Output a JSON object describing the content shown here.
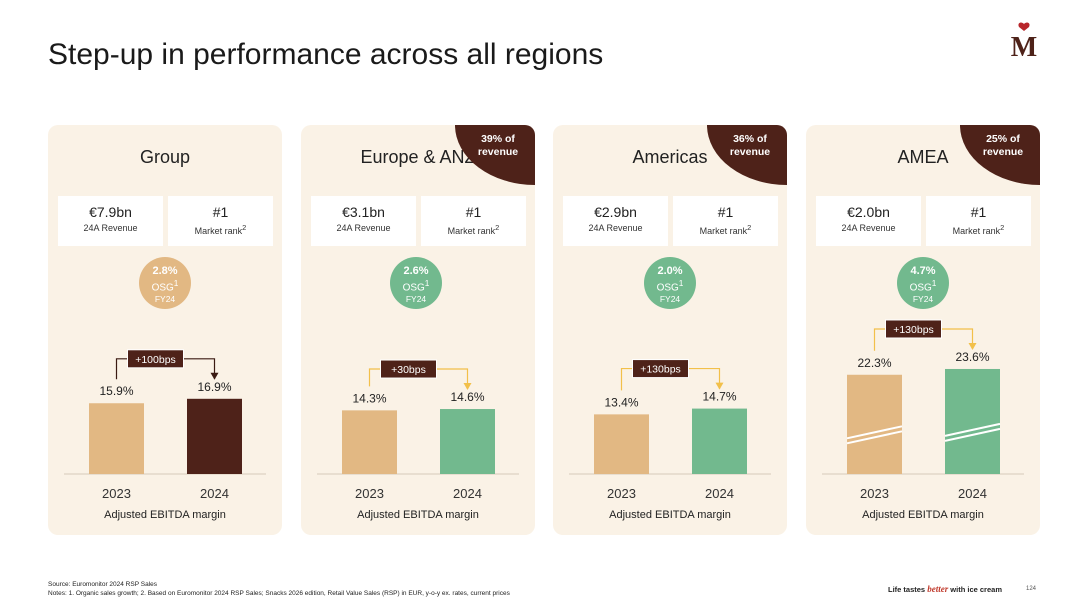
{
  "title": "Step-up in performance across all regions",
  "logo": {
    "letter": "M"
  },
  "colors": {
    "tan": "#e2b883",
    "brown": "#4e2219",
    "green": "#72b98e",
    "panel_bg": "#faf2e6",
    "corner": "#4e2219"
  },
  "labels": {
    "revenue_label": "24A Revenue",
    "rank_label": "Market rank",
    "rank_sup": "2",
    "osg_label": "OSG",
    "osg_sup": "1",
    "osg_year": "FY24",
    "ebitda_label": "Adjusted EBITDA margin"
  },
  "chart_data": [
    {
      "type": "bar",
      "title": "Group",
      "categories": [
        "2023",
        "2024"
      ],
      "values": [
        15.9,
        16.9
      ],
      "value_labels": [
        "15.9%",
        "16.9%"
      ],
      "delta": "+100bps",
      "revenue": "€7.9bn",
      "rank": "#1",
      "osg": "2.8%",
      "share": "",
      "xlabel": "Adjusted EBITDA margin",
      "ylabel": "",
      "ylim": [
        0,
        30
      ],
      "bar_colors": [
        "#e2b883",
        "#4e2219"
      ],
      "osg_color": "#e2b883",
      "broken": false
    },
    {
      "type": "bar",
      "title": "Europe & ANZ",
      "categories": [
        "2023",
        "2024"
      ],
      "values": [
        14.3,
        14.6
      ],
      "value_labels": [
        "14.3%",
        "14.6%"
      ],
      "delta": "+30bps",
      "revenue": "€3.1bn",
      "rank": "#1",
      "osg": "2.6%",
      "share": "39% of revenue",
      "share_lines": [
        "39% of",
        "revenue"
      ],
      "xlabel": "Adjusted EBITDA margin",
      "ylabel": "",
      "ylim": [
        0,
        30
      ],
      "bar_colors": [
        "#e2b883",
        "#72b98e"
      ],
      "osg_color": "#72b98e",
      "broken": false
    },
    {
      "type": "bar",
      "title": "Americas",
      "categories": [
        "2023",
        "2024"
      ],
      "values": [
        13.4,
        14.7
      ],
      "value_labels": [
        "13.4%",
        "14.7%"
      ],
      "delta": "+130bps",
      "revenue": "€2.9bn",
      "rank": "#1",
      "osg": "2.0%",
      "share": "36% of revenue",
      "share_lines": [
        "36% of",
        "revenue"
      ],
      "xlabel": "Adjusted EBITDA margin",
      "ylabel": "",
      "ylim": [
        0,
        30
      ],
      "bar_colors": [
        "#e2b883",
        "#72b98e"
      ],
      "osg_color": "#72b98e",
      "broken": false
    },
    {
      "type": "bar",
      "title": "AMEA",
      "categories": [
        "2023",
        "2024"
      ],
      "values": [
        22.3,
        23.6
      ],
      "value_labels": [
        "22.3%",
        "23.6%"
      ],
      "delta": "+130bps",
      "revenue": "€2.0bn",
      "rank": "#1",
      "osg": "4.7%",
      "share": "25% of revenue",
      "share_lines": [
        "25% of",
        "revenue"
      ],
      "xlabel": "Adjusted EBITDA margin",
      "ylabel": "",
      "ylim": [
        0,
        30
      ],
      "bar_colors": [
        "#e2b883",
        "#72b98e"
      ],
      "osg_color": "#72b98e",
      "broken": true
    }
  ],
  "footer": {
    "source": "Source: Euromonitor 2024 RSP Sales",
    "notes": "Notes: 1. Organic sales growth; 2. Based on Euromonitor 2024 RSP Sales; Snacks 2026 edition, Retail Value Sales (RSP) in EUR, y-o-y ex. rates, current prices",
    "tagline_pre": "Life tastes",
    "tagline_brand": "better",
    "tagline_post": "with ice cream",
    "page_number": "124"
  }
}
